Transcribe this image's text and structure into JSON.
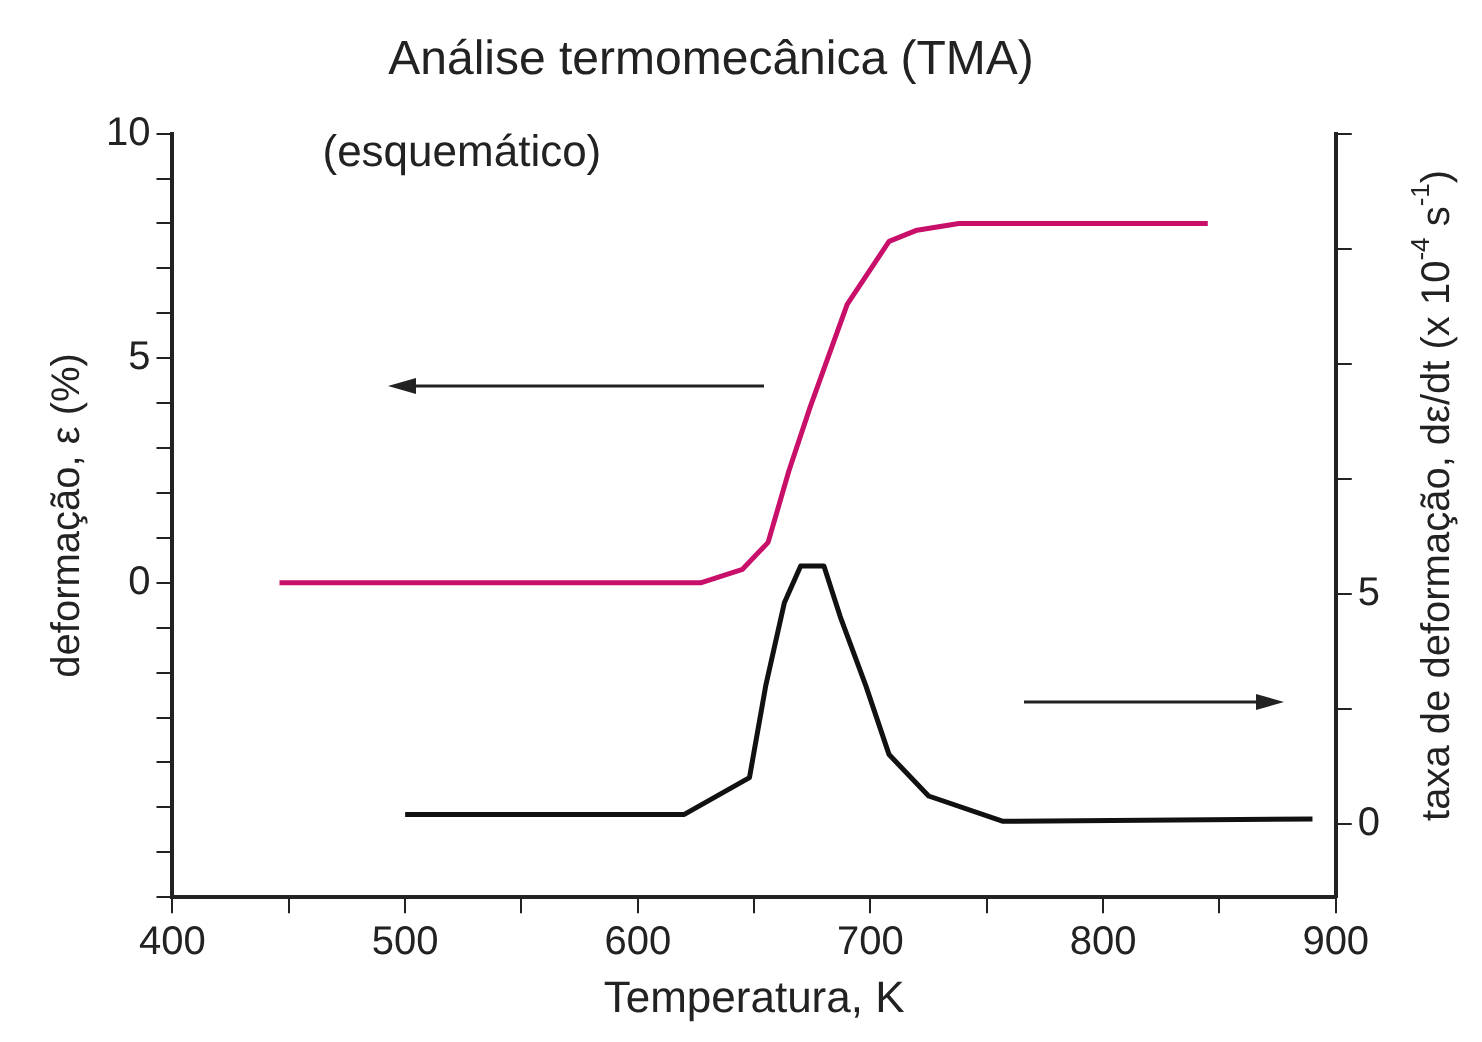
{
  "chart_data": {
    "type": "line",
    "title": "Análise termomecânica (TMA)",
    "subtitle": "(esquemático)",
    "xlabel": "Temperatura, K",
    "ylabel": "deformação, ε (%)",
    "y2label": "taxa de deformação, dε/dt (x 10$^{-4}$ s$^{-1}$)",
    "xlim": [
      400,
      900
    ],
    "xticks": [
      400,
      {
        "value": 450,
        "label": null
      },
      500,
      {
        "value": 550,
        "label": null
      },
      600,
      {
        "value": 650,
        "label": null
      },
      700,
      {
        "value": 750,
        "label": null
      },
      800,
      {
        "value": 850,
        "label": null
      },
      900
    ],
    "ylim": [
      -7,
      10
    ],
    "yticks": [
      {
        "value": -7,
        "label": null
      },
      {
        "value": -6,
        "label": null
      },
      {
        "value": -5,
        "label": null
      },
      {
        "value": -4,
        "label": null
      },
      {
        "value": -3,
        "label": null
      },
      {
        "value": -2,
        "label": null
      },
      {
        "value": -1,
        "label": null
      },
      0,
      {
        "value": 1,
        "label": null
      },
      {
        "value": 2,
        "label": null
      },
      {
        "value": 3,
        "label": null
      },
      {
        "value": 4,
        "label": null
      },
      5,
      {
        "value": 6,
        "label": null
      },
      {
        "value": 7,
        "label": null
      },
      {
        "value": 8,
        "label": null
      },
      {
        "value": 9,
        "label": null
      },
      10
    ],
    "y2lim": [
      -1.6,
      15
    ],
    "y2ticks": [
      0,
      {
        "value": 2.5,
        "label": null
      },
      5,
      {
        "value": 7.5,
        "label": null
      },
      {
        "value": 10,
        "label": null
      },
      {
        "value": 12.5,
        "label": null
      },
      {
        "value": 15,
        "label": null
      }
    ],
    "grid": false,
    "legend": false,
    "marker": "none",
    "line_style": "solid",
    "series": [
      {
        "color": "#c8106a",
        "x": [
          446,
          627,
          645,
          656,
          665,
          674,
          690,
          708,
          720,
          738,
          845
        ],
        "values": [
          0,
          0,
          0.3,
          0.9,
          2.5,
          3.9,
          6.2,
          7.6,
          7.85,
          8,
          8
        ]
      },
      {
        "color": "#111111",
        "axis": "y2",
        "x": [
          500,
          620,
          648,
          655,
          663,
          670,
          680,
          687,
          698,
          708,
          725,
          757,
          890
        ],
        "values": [
          0.2,
          0.2,
          1,
          3,
          4.8,
          5.6,
          5.6,
          4.5,
          3,
          1.5,
          0.6,
          0.05,
          0.1
        ]
      }
    ]
  }
}
